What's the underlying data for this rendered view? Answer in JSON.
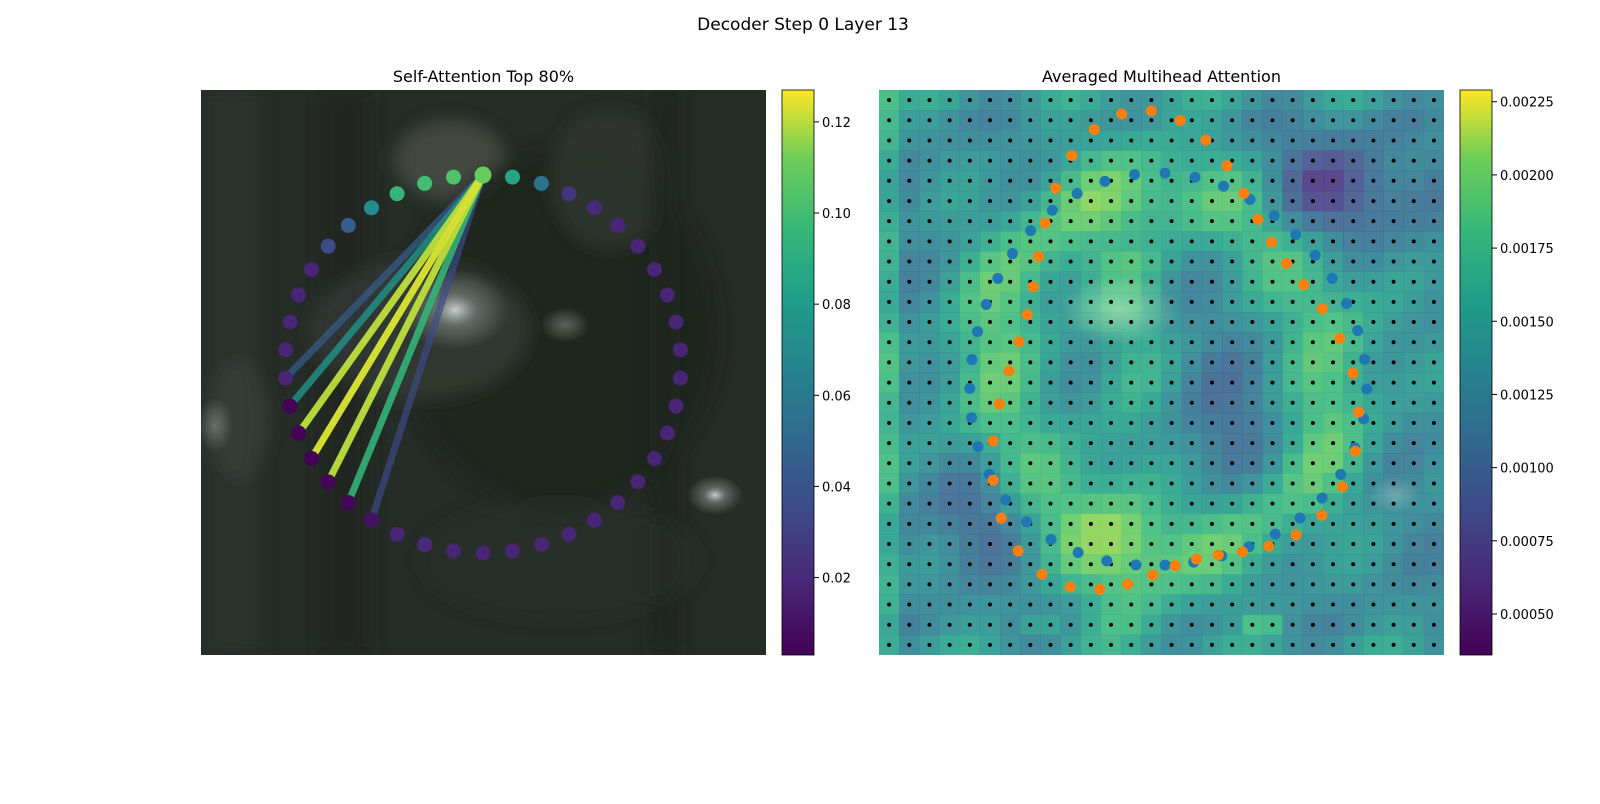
{
  "figure": {
    "title": "Decoder Step 0 Layer 13"
  },
  "chart_data": [
    {
      "type": "scatter",
      "title": "Self-Attention Top 80%",
      "axes_visible": false,
      "background": "blurred dark photograph",
      "colormap": "viridis",
      "colorbar": {
        "min": 0.003,
        "max": 0.127,
        "ticks": [
          0.02,
          0.04,
          0.06,
          0.08,
          0.1,
          0.12
        ],
        "tick_labels": [
          "0.02",
          "0.04",
          "0.06",
          "0.08",
          "0.10",
          "0.12"
        ]
      },
      "ring": {
        "num_points": 42,
        "query_index": 0,
        "point_values": [
          0.11,
          0.085,
          0.055,
          0.025,
          0.02,
          0.018,
          0.018,
          0.018,
          0.018,
          0.018,
          0.018,
          0.018,
          0.018,
          0.018,
          0.018,
          0.018,
          0.018,
          0.018,
          0.018,
          0.018,
          0.018,
          0.018,
          0.018,
          0.02,
          0.018,
          0.01,
          0.005,
          0.004,
          0.003,
          0.004,
          0.004,
          0.018,
          0.018,
          0.018,
          0.018,
          0.018,
          0.035,
          0.045,
          0.07,
          0.095,
          0.1,
          0.103
        ]
      },
      "attention_edges": [
        {
          "from": 0,
          "to": 31,
          "value": 0.045
        },
        {
          "from": 0,
          "to": 30,
          "value": 0.075
        },
        {
          "from": 0,
          "to": 29,
          "value": 0.12
        },
        {
          "from": 0,
          "to": 28,
          "value": 0.123
        },
        {
          "from": 0,
          "to": 27,
          "value": 0.12
        },
        {
          "from": 0,
          "to": 26,
          "value": 0.095
        },
        {
          "from": 0,
          "to": 25,
          "value": 0.035
        }
      ]
    },
    {
      "type": "heatmap",
      "title": "Averaged Multihead Attention",
      "axes_visible": false,
      "colormap": "viridis",
      "grid": {
        "rows": 28,
        "cols": 28
      },
      "colorbar": {
        "min": 0.00036,
        "max": 0.00229,
        "ticks": [
          0.0005,
          0.00075,
          0.001,
          0.00125,
          0.0015,
          0.00175,
          0.002,
          0.00225
        ],
        "tick_labels": [
          "0.00050",
          "0.00075",
          "0.00100",
          "0.00125",
          "0.00150",
          "0.00175",
          "0.00200",
          "0.00225"
        ]
      },
      "series": [
        {
          "marker": "grid-points",
          "color": "#000000"
        },
        {
          "marker": "inner-contour",
          "color": "#1f77b4",
          "num_points": 42
        },
        {
          "marker": "outer-contour",
          "color": "#ff7f0e",
          "num_points": 42
        }
      ]
    }
  ]
}
